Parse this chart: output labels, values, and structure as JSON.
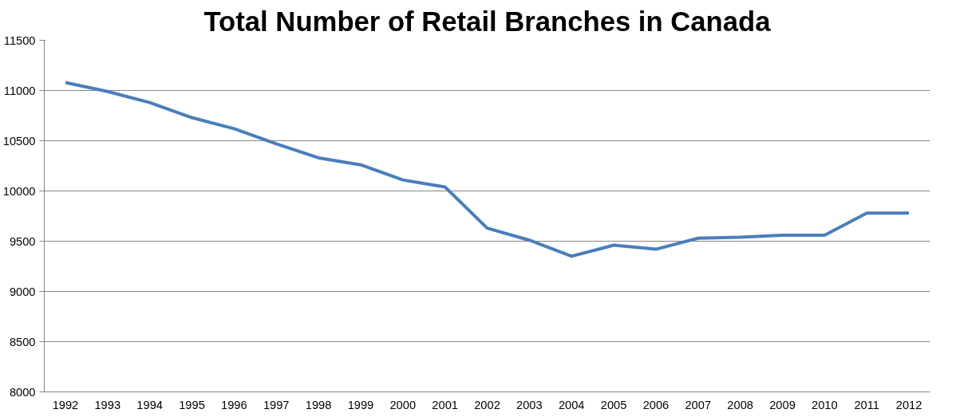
{
  "chart_data": {
    "type": "line",
    "title": "Total Number of Retail Branches in Canada",
    "categories": [
      "1992",
      "1993",
      "1994",
      "1995",
      "1996",
      "1997",
      "1998",
      "1999",
      "2000",
      "2001",
      "2002",
      "2003",
      "2004",
      "2005",
      "2006",
      "2007",
      "2008",
      "2009",
      "2010",
      "2011",
      "2012"
    ],
    "series": [
      {
        "color": "#4a7ebb",
        "values": [
          11080,
          10990,
          10880,
          10730,
          10620,
          10470,
          10330,
          10260,
          10110,
          10040,
          9630,
          9510,
          9350,
          9460,
          9420,
          9530,
          9540,
          9560,
          9560,
          9780,
          9780
        ]
      }
    ],
    "ylim": [
      8000,
      11500
    ],
    "yticks": [
      8000,
      8500,
      9000,
      9500,
      10000,
      10500,
      11000,
      11500
    ],
    "grid": "y",
    "marker": "none",
    "line_style": "solid"
  }
}
